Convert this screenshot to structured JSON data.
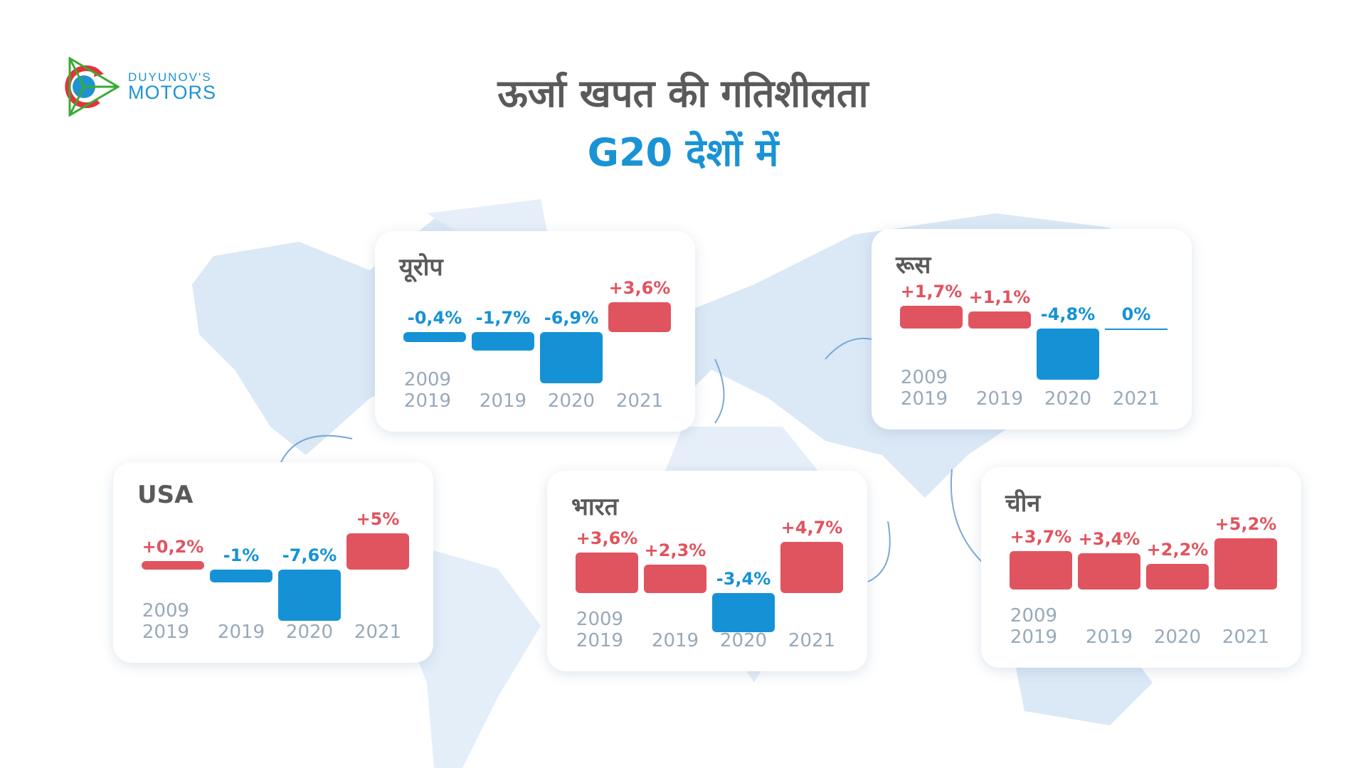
{
  "logo": {
    "line1": "DUYUNOV'S",
    "line2": "MOTORS"
  },
  "title": "ऊर्जा खपत की गतिशीलता",
  "subtitle": "G20 देशों में",
  "colors": {
    "positive": "#e0545f",
    "negative": "#1592d6",
    "title": "#5a5a5a",
    "subtitle": "#1a93d5",
    "map": "#dbe8f6"
  },
  "chart_data": [
    {
      "type": "bar",
      "title": "यूरोप",
      "categories": [
        "2009 2019",
        "2019",
        "2020",
        "2021"
      ],
      "values": [
        -0.4,
        -1.7,
        -6.9,
        3.6
      ],
      "labels": [
        "-0,4%",
        "-1,7%",
        "-6,9%",
        "+3,6%"
      ]
    },
    {
      "type": "bar",
      "title": "रूस",
      "categories": [
        "2009 2019",
        "2019",
        "2020",
        "2021"
      ],
      "values": [
        1.7,
        1.1,
        -4.8,
        0
      ],
      "labels": [
        "+1,7%",
        "+1,1%",
        "-4,8%",
        "0%"
      ]
    },
    {
      "type": "bar",
      "title": "USA",
      "categories": [
        "2009 2019",
        "2019",
        "2020",
        "2021"
      ],
      "values": [
        0.2,
        -1,
        -7.6,
        5
      ],
      "labels": [
        "+0,2%",
        "-1%",
        "-7,6%",
        "+5%"
      ]
    },
    {
      "type": "bar",
      "title": "भारत",
      "categories": [
        "2009 2019",
        "2019",
        "2020",
        "2021"
      ],
      "values": [
        3.6,
        2.3,
        -3.4,
        4.7
      ],
      "labels": [
        "+3,6%",
        "+2,3%",
        "-3,4%",
        "+4,7%"
      ]
    },
    {
      "type": "bar",
      "title": "चीन",
      "categories": [
        "2009 2019",
        "2019",
        "2020",
        "2021"
      ],
      "values": [
        3.7,
        3.4,
        2.2,
        5.2
      ],
      "labels": [
        "+3,7%",
        "+3,4%",
        "+2,2%",
        "+5,2%"
      ]
    }
  ]
}
